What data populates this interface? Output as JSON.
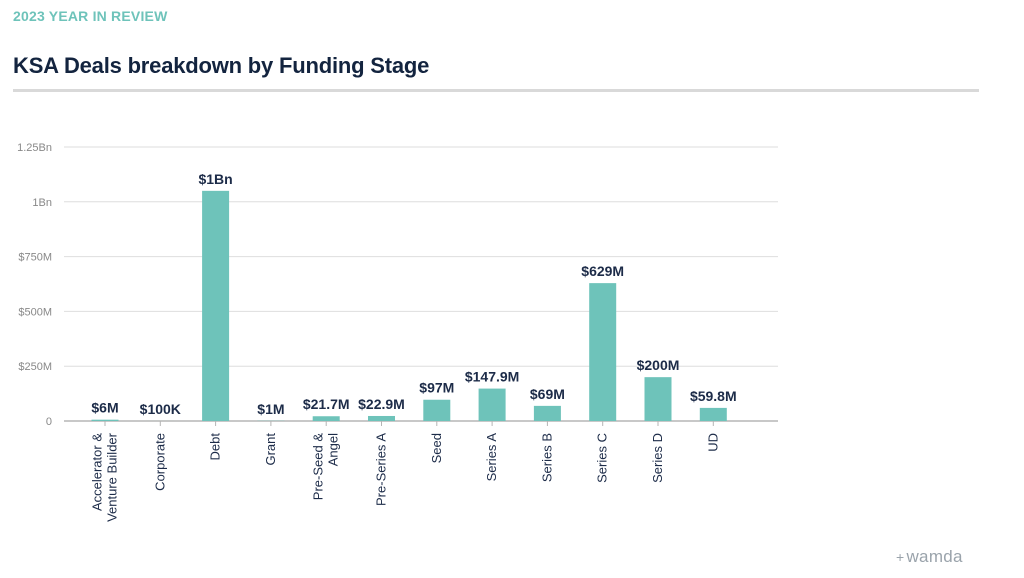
{
  "header": {
    "eyebrow": "2023 YEAR IN REVIEW",
    "title": "KSA Deals breakdown by Funding Stage"
  },
  "brand": {
    "plus": "+",
    "name": "wamda"
  },
  "colors": {
    "accent": "#6ec3ba",
    "title": "#13243f",
    "label": "#1c2b48",
    "grid": "#dedede",
    "axis": "#888888"
  },
  "chart_data": {
    "type": "bar",
    "title": "KSA Deals breakdown by Funding Stage",
    "xlabel": "",
    "ylabel": "",
    "ylim": [
      0,
      1250000000
    ],
    "grid": true,
    "y_ticks": [
      {
        "value": 0,
        "label": "0"
      },
      {
        "value": 250000000,
        "label": "$250M"
      },
      {
        "value": 500000000,
        "label": "$500M"
      },
      {
        "value": 750000000,
        "label": "$750M"
      },
      {
        "value": 1000000000,
        "label": "1Bn"
      },
      {
        "value": 1250000000,
        "label": "1.25Bn"
      }
    ],
    "categories": [
      [
        "Accelerator &",
        "Venture Builder"
      ],
      [
        "Corporate"
      ],
      [
        "Debt"
      ],
      [
        "Grant"
      ],
      [
        "Pre-Seed &",
        "Angel"
      ],
      [
        "Pre-Series A"
      ],
      [
        "Seed"
      ],
      [
        "Series A"
      ],
      [
        "Series B"
      ],
      [
        "Series C"
      ],
      [
        "Series D"
      ],
      [
        "UD"
      ]
    ],
    "values": [
      6000000,
      100000,
      1050000000,
      1000000,
      21700000,
      22900000,
      97000000,
      147900000,
      69000000,
      629000000,
      200000000,
      59800000
    ],
    "data_labels": [
      "$6M",
      "$100K",
      "$1Bn",
      "$1M",
      "$21.7M",
      "$22.9M",
      "$97M",
      "$147.9M",
      "$69M",
      "$629M",
      "$200M",
      "$59.8M"
    ]
  }
}
